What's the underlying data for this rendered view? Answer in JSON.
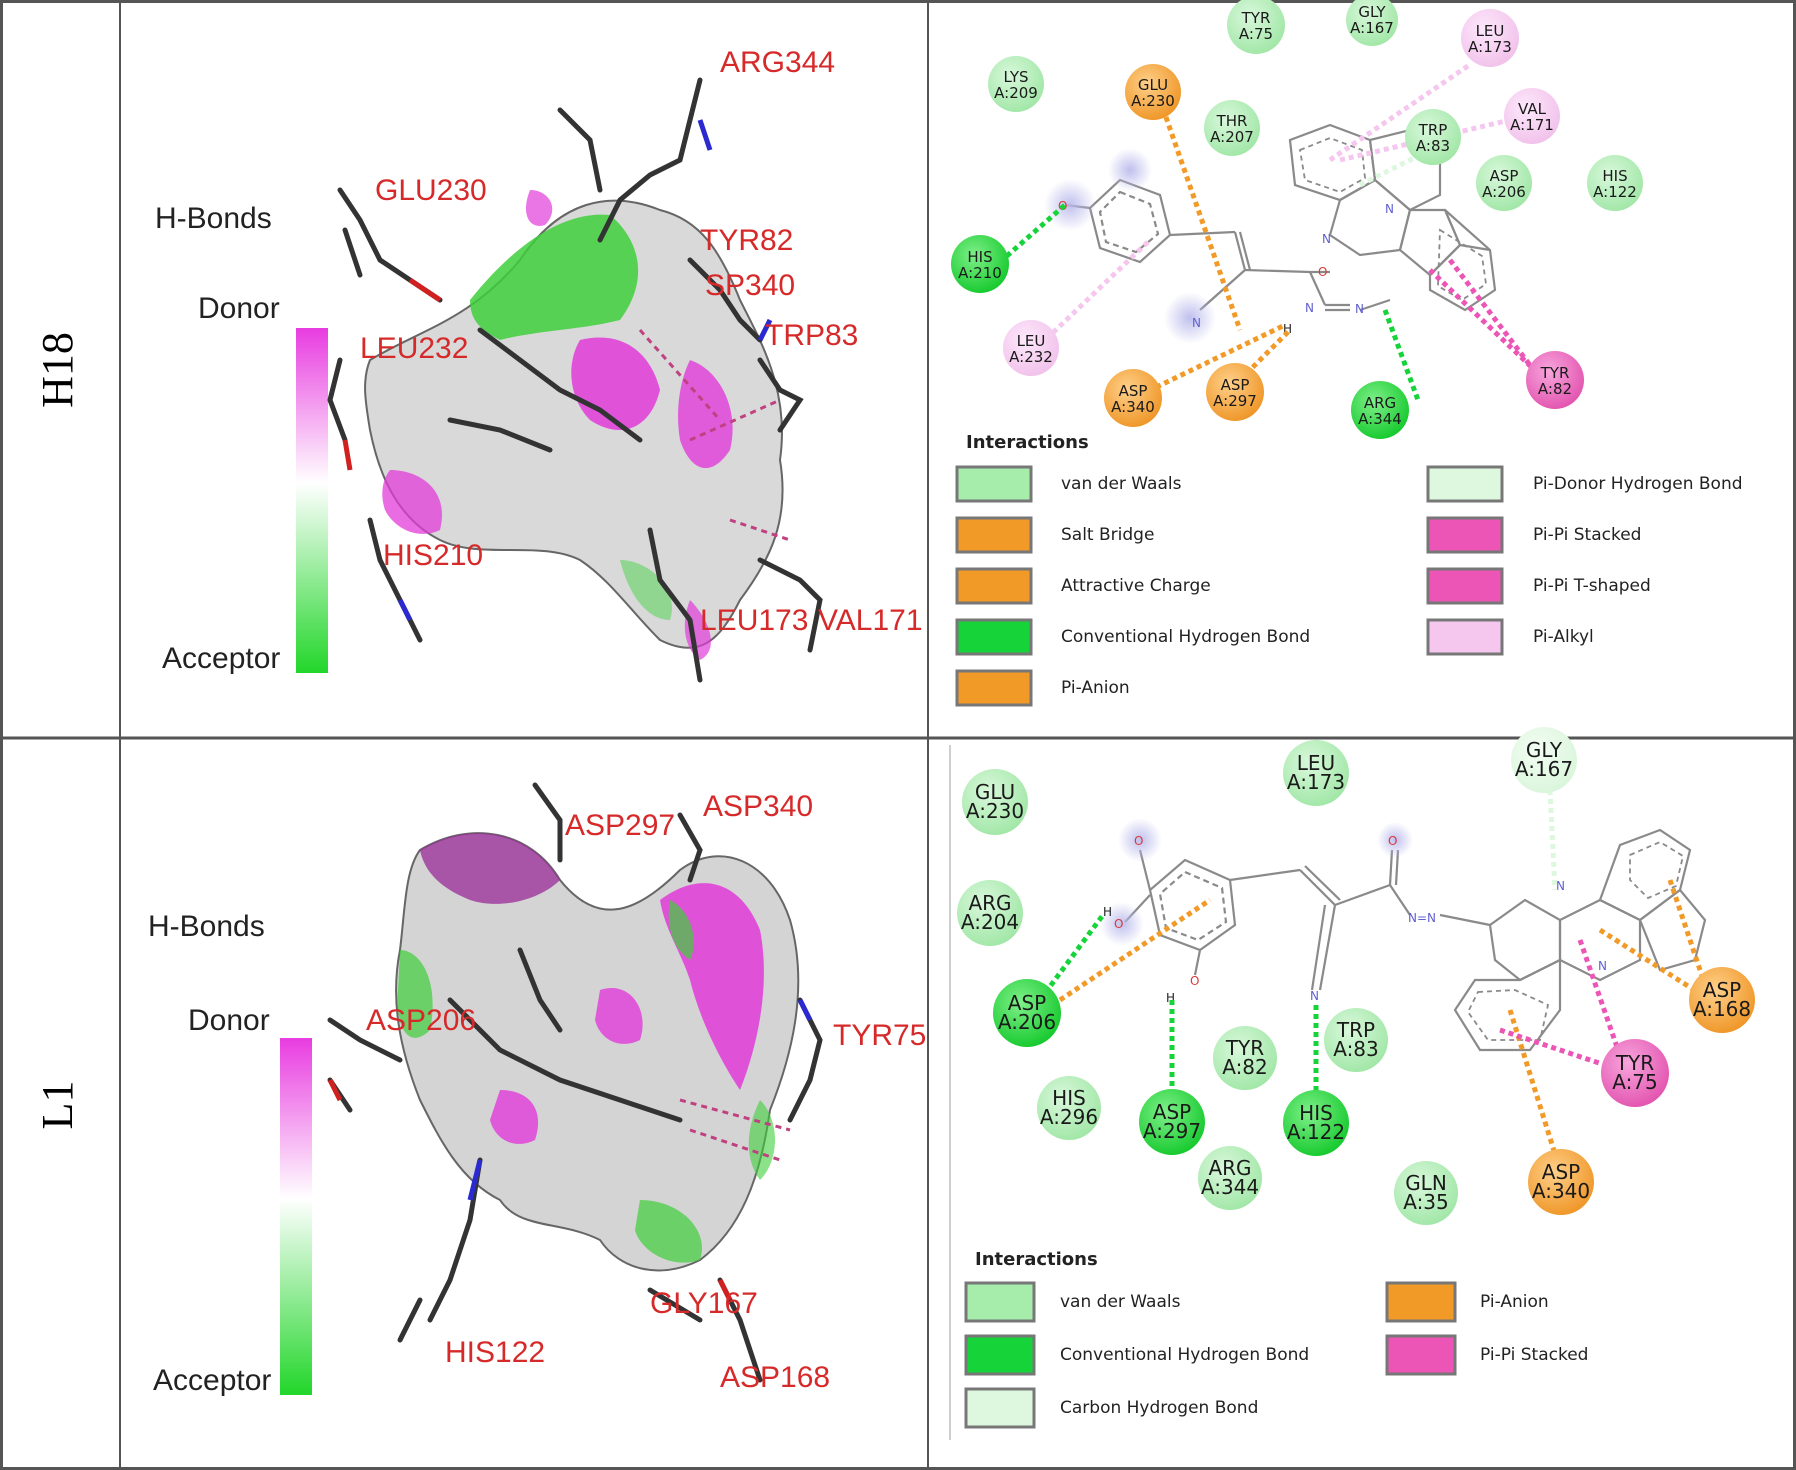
{
  "rows": [
    {
      "label": "H18",
      "scale": {
        "top": "H-Bonds",
        "donor": "Donor",
        "acceptor": "Acceptor"
      },
      "pocket_residues": [
        "ARG344",
        "GLU230",
        "TYR82",
        "SP340",
        "TRP83",
        "LEU232",
        "HIS210",
        "LEU173",
        "VAL171"
      ],
      "residues": [
        {
          "label": [
            "TYR",
            "A:75"
          ],
          "type": "vdw"
        },
        {
          "label": [
            "GLY",
            "A:167"
          ],
          "type": "vdw"
        },
        {
          "label": [
            "LEU",
            "A:173"
          ],
          "type": "pialkyl"
        },
        {
          "label": [
            "LYS",
            "A:209"
          ],
          "type": "vdw"
        },
        {
          "label": [
            "GLU",
            "A:230"
          ],
          "type": "salt"
        },
        {
          "label": [
            "THR",
            "A:207"
          ],
          "type": "vdw"
        },
        {
          "label": [
            "TRP",
            "A:83"
          ],
          "type": "vdw"
        },
        {
          "label": [
            "VAL",
            "A:171"
          ],
          "type": "pialkyl"
        },
        {
          "label": [
            "ASP",
            "A:206"
          ],
          "type": "vdw"
        },
        {
          "label": [
            "HIS",
            "A:122"
          ],
          "type": "vdw"
        },
        {
          "label": [
            "HIS",
            "A:210"
          ],
          "type": "hbond"
        },
        {
          "label": [
            "LEU",
            "A:232"
          ],
          "type": "pialkyl"
        },
        {
          "label": [
            "ASP",
            "A:340"
          ],
          "type": "salt"
        },
        {
          "label": [
            "ASP",
            "A:297"
          ],
          "type": "salt"
        },
        {
          "label": [
            "ARG",
            "A:344"
          ],
          "type": "hbond"
        },
        {
          "label": [
            "TYR",
            "A:82"
          ],
          "type": "pipi"
        }
      ],
      "legend": {
        "title": "Interactions",
        "items": [
          {
            "label": "van der Waals",
            "color": "#a6ecab"
          },
          {
            "label": "Salt Bridge",
            "color": "#f29a28"
          },
          {
            "label": "Attractive Charge",
            "color": "#f29a28"
          },
          {
            "label": "Conventional Hydrogen Bond",
            "color": "#16d33a"
          },
          {
            "label": "Pi-Anion",
            "color": "#f29a28"
          },
          {
            "label": "Pi-Donor Hydrogen Bond",
            "color": "#def7df"
          },
          {
            "label": "Pi-Pi Stacked",
            "color": "#ec54b5"
          },
          {
            "label": "Pi-Pi T-shaped",
            "color": "#ec54b5"
          },
          {
            "label": "Pi-Alkyl",
            "color": "#f5c7ef"
          }
        ]
      }
    },
    {
      "label": "L1",
      "scale": {
        "top": "H-Bonds",
        "donor": "Donor",
        "acceptor": "Acceptor"
      },
      "pocket_residues": [
        "ASP297",
        "ASP340",
        "ASP206",
        "TYR75",
        "HIS122",
        "GLY167",
        "ASP168"
      ],
      "residues": [
        {
          "label": [
            "GLU",
            "A:230"
          ],
          "type": "vdw"
        },
        {
          "label": [
            "LEU",
            "A:173"
          ],
          "type": "vdw"
        },
        {
          "label": [
            "GLY",
            "A:167"
          ],
          "type": "chb"
        },
        {
          "label": [
            "ARG",
            "A:204"
          ],
          "type": "vdw"
        },
        {
          "label": [
            "ASP",
            "A:206"
          ],
          "type": "hbond"
        },
        {
          "label": [
            "TYR",
            "A:82"
          ],
          "type": "vdw"
        },
        {
          "label": [
            "TRP",
            "A:83"
          ],
          "type": "vdw"
        },
        {
          "label": [
            "ASP",
            "A:168"
          ],
          "type": "pianion"
        },
        {
          "label": [
            "HIS",
            "A:296"
          ],
          "type": "vdw"
        },
        {
          "label": [
            "ASP",
            "A:297"
          ],
          "type": "hbond"
        },
        {
          "label": [
            "HIS",
            "A:122"
          ],
          "type": "hbond"
        },
        {
          "label": [
            "TYR",
            "A:75"
          ],
          "type": "pipi"
        },
        {
          "label": [
            "ARG",
            "A:344"
          ],
          "type": "vdw"
        },
        {
          "label": [
            "GLN",
            "A:35"
          ],
          "type": "vdw"
        },
        {
          "label": [
            "ASP",
            "A:340"
          ],
          "type": "pianion"
        }
      ],
      "legend": {
        "title": "Interactions",
        "items": [
          {
            "label": "van der Waals",
            "color": "#a6ecab"
          },
          {
            "label": "Conventional Hydrogen Bond",
            "color": "#16d33a"
          },
          {
            "label": "Carbon Hydrogen Bond",
            "color": "#def7df"
          },
          {
            "label": "Pi-Anion",
            "color": "#f29a28"
          },
          {
            "label": "Pi-Pi Stacked",
            "color": "#ec54b5"
          }
        ]
      }
    }
  ]
}
